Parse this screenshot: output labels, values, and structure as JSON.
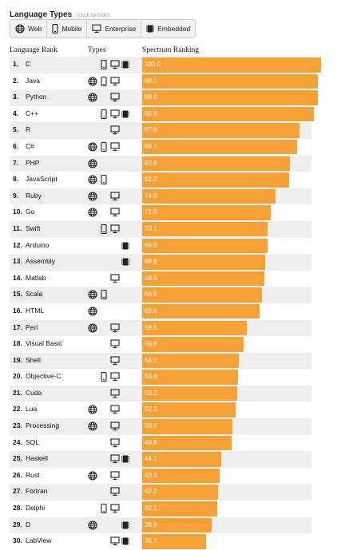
{
  "panel": {
    "title": "Language Types",
    "hint": "(click to hide)"
  },
  "filters": [
    {
      "label": "Web",
      "icon": "globe-icon"
    },
    {
      "label": "Mobile",
      "icon": "phone-icon"
    },
    {
      "label": "Enterprise",
      "icon": "monitor-icon"
    },
    {
      "label": "Embedded",
      "icon": "chip-icon"
    }
  ],
  "headers": {
    "rank": "Language Rank",
    "types": "Types",
    "ranking": "Spectrum Ranking"
  },
  "chart_data": {
    "type": "bar",
    "orientation": "horizontal",
    "xlim": [
      0,
      100
    ],
    "bar_color": "#f7a035",
    "rows": [
      {
        "rank": "1.",
        "name": "C",
        "value": "100.0",
        "types": [
          "mobile",
          "enterprise",
          "embedded"
        ]
      },
      {
        "rank": "2.",
        "name": "Java",
        "value": "98.1",
        "types": [
          "web",
          "mobile",
          "enterprise"
        ]
      },
      {
        "rank": "3.",
        "name": "Python",
        "value": "98.0",
        "types": [
          "web",
          "enterprise"
        ]
      },
      {
        "rank": "4.",
        "name": "C++",
        "value": "95.9",
        "types": [
          "mobile",
          "enterprise",
          "embedded"
        ]
      },
      {
        "rank": "5.",
        "name": "R",
        "value": "87.9",
        "types": [
          "enterprise"
        ]
      },
      {
        "rank": "6.",
        "name": "C#",
        "value": "86.7",
        "types": [
          "web",
          "mobile",
          "enterprise"
        ]
      },
      {
        "rank": "7.",
        "name": "PHP",
        "value": "82.8",
        "types": [
          "web"
        ]
      },
      {
        "rank": "8.",
        "name": "JavaScript",
        "value": "82.2",
        "types": [
          "web",
          "mobile"
        ]
      },
      {
        "rank": "9.",
        "name": "Ruby",
        "value": "74.5",
        "types": [
          "web",
          "enterprise"
        ]
      },
      {
        "rank": "10.",
        "name": "Go",
        "value": "71.9",
        "types": [
          "web",
          "enterprise"
        ]
      },
      {
        "rank": "11.",
        "name": "Swift",
        "value": "70.1",
        "types": [
          "mobile",
          "enterprise"
        ]
      },
      {
        "rank": "12.",
        "name": "Arduino",
        "value": "69.9",
        "types": [
          "embedded"
        ]
      },
      {
        "rank": "13.",
        "name": "Assembly",
        "value": "68.6",
        "types": [
          "embedded"
        ]
      },
      {
        "rank": "14.",
        "name": "Matlab",
        "value": "68.5",
        "types": [
          "enterprise"
        ]
      },
      {
        "rank": "15.",
        "name": "Scala",
        "value": "66.9",
        "types": [
          "web",
          "mobile"
        ]
      },
      {
        "rank": "16.",
        "name": "HTML",
        "value": "65.6",
        "types": [
          "web"
        ]
      },
      {
        "rank": "17.",
        "name": "Perl",
        "value": "58.5",
        "types": [
          "web",
          "enterprise"
        ]
      },
      {
        "rank": "18.",
        "name": "Visual Basic",
        "value": "56.8",
        "types": [
          "enterprise"
        ]
      },
      {
        "rank": "19.",
        "name": "Shell",
        "value": "54.2",
        "types": [
          "enterprise"
        ]
      },
      {
        "rank": "20.",
        "name": "Objective-C",
        "value": "53.4",
        "types": [
          "mobile",
          "enterprise"
        ]
      },
      {
        "rank": "21.",
        "name": "Cuda",
        "value": "53.2",
        "types": [
          "enterprise"
        ]
      },
      {
        "rank": "22.",
        "name": "Lua",
        "value": "52.1",
        "types": [
          "web",
          "enterprise"
        ]
      },
      {
        "rank": "23.",
        "name": "Processing",
        "value": "50.5",
        "types": [
          "web",
          "enterprise"
        ]
      },
      {
        "rank": "24.",
        "name": "SQL",
        "value": "49.8",
        "types": [
          "enterprise"
        ]
      },
      {
        "rank": "25.",
        "name": "Haskell",
        "value": "44.1",
        "types": [
          "enterprise",
          "embedded"
        ]
      },
      {
        "rank": "26.",
        "name": "Rust",
        "value": "43.3",
        "types": [
          "web",
          "enterprise"
        ]
      },
      {
        "rank": "27.",
        "name": "Fortran",
        "value": "42.2",
        "types": [
          "enterprise"
        ]
      },
      {
        "rank": "28.",
        "name": "Delphi",
        "value": "42.1",
        "types": [
          "mobile",
          "enterprise"
        ]
      },
      {
        "rank": "29.",
        "name": "D",
        "value": "38.9",
        "types": [
          "web",
          "embedded"
        ]
      },
      {
        "rank": "30.",
        "name": "LabView",
        "value": "35.7",
        "types": [
          "enterprise",
          "embedded"
        ]
      }
    ]
  }
}
